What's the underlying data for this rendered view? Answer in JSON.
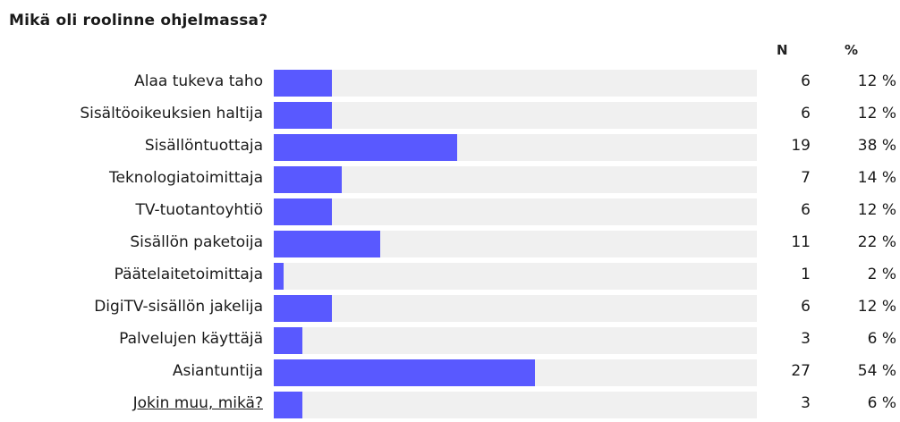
{
  "question": "Mikä oli roolinne ohjelmassa?",
  "columns": {
    "n": "N",
    "pct": "%"
  },
  "colors": {
    "bar": "#5959ff",
    "track": "#f0f0f0"
  },
  "chart_data": {
    "type": "bar",
    "orientation": "horizontal",
    "title": "Mikä oli roolinne ohjelmassa?",
    "xlabel": "",
    "ylabel": "",
    "xlim": [
      0,
      100
    ],
    "categories": [
      "Alaa tukeva taho",
      "Sisältöoikeuksien haltija",
      "Sisällöntuottaja",
      "Teknologiatoimittaja",
      "TV-tuotantoyhtiö",
      "Sisällön paketoija",
      "Päätelaitetoimittaja",
      "DigiTV-sisällön jakelija",
      "Palvelujen käyttäjä",
      "Asiantuntija",
      "Jokin muu, mikä?"
    ],
    "counts": [
      6,
      6,
      19,
      7,
      6,
      11,
      1,
      6,
      3,
      27,
      3
    ],
    "percent_labels": [
      "12 %",
      "12 %",
      "38 %",
      "14 %",
      "12 %",
      "22 %",
      "2 %",
      "12 %",
      "6 %",
      "54 %",
      "6 %"
    ],
    "values": [
      12,
      12,
      38,
      14,
      12,
      22,
      2,
      12,
      6,
      54,
      6
    ],
    "link_categories": [
      "Jokin muu, mikä?"
    ]
  }
}
